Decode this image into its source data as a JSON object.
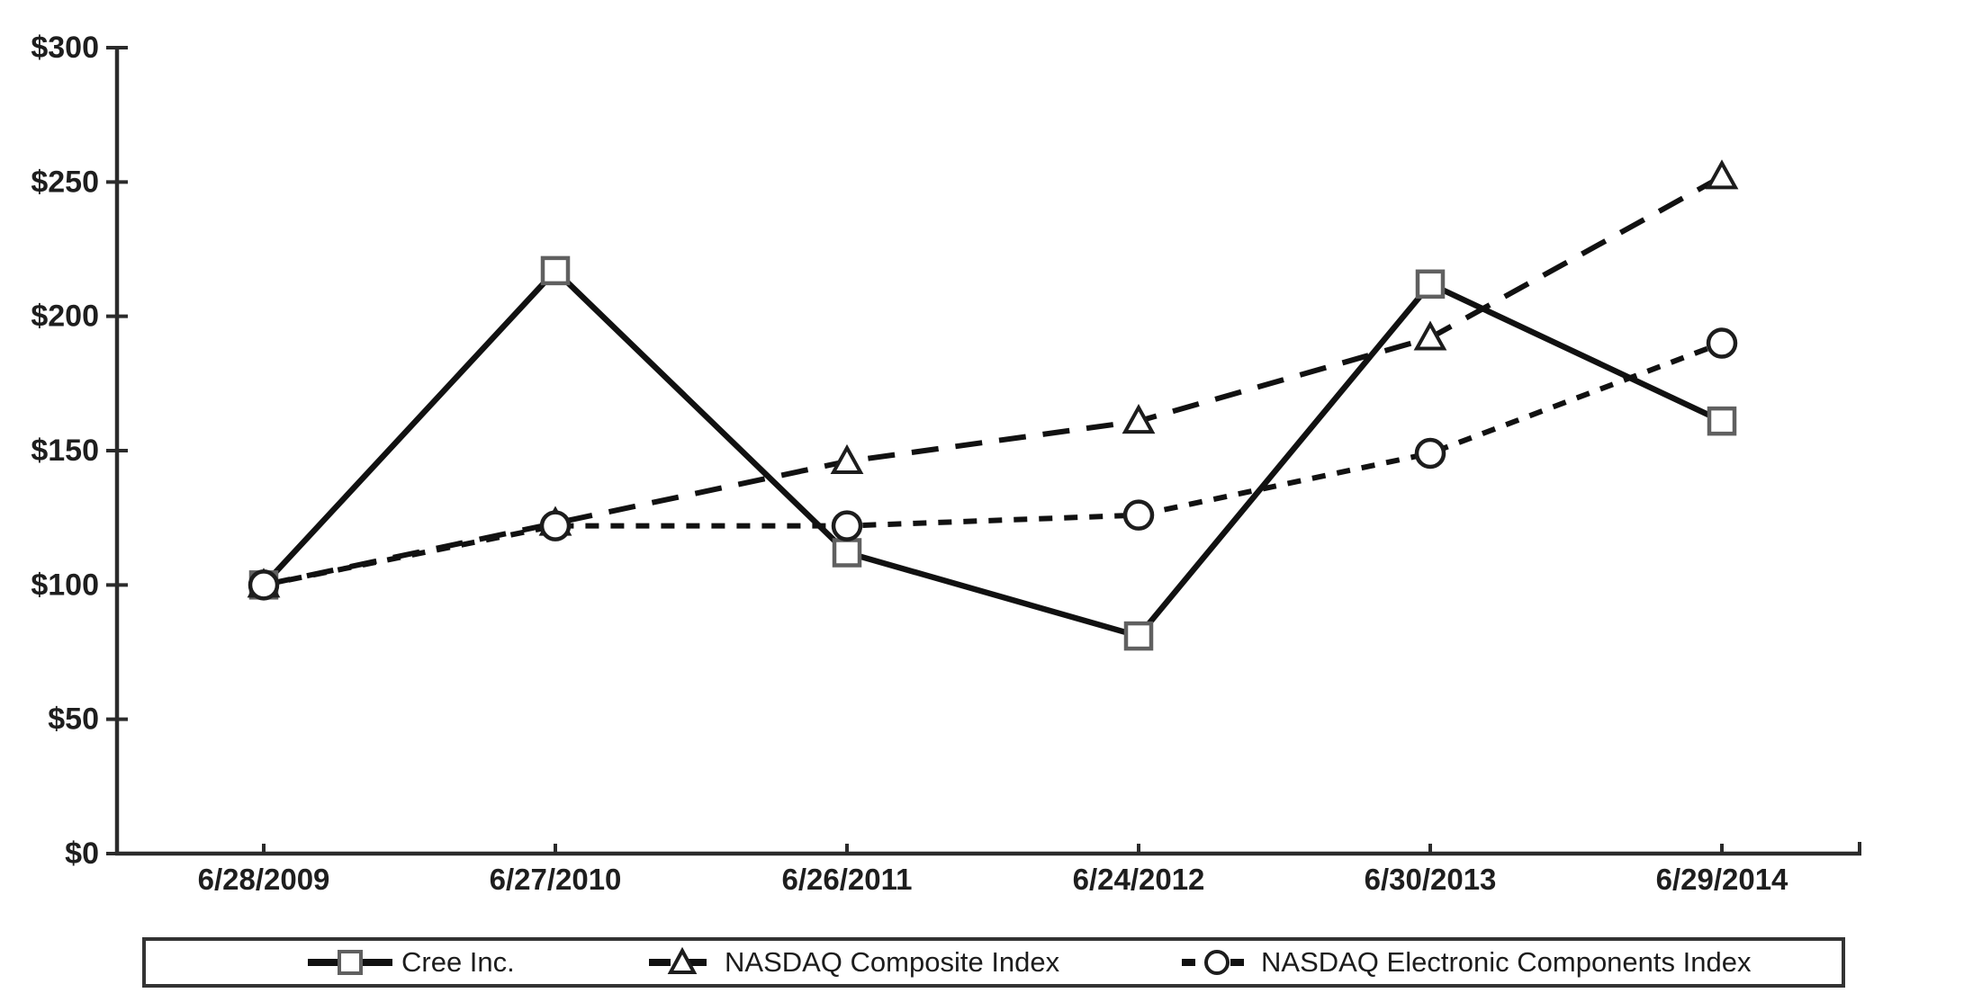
{
  "chart_data": {
    "type": "line",
    "title": "",
    "xlabel": "",
    "ylabel": "",
    "categories": [
      "6/28/2009",
      "6/27/2010",
      "6/26/2011",
      "6/24/2012",
      "6/30/2013",
      "6/29/2014"
    ],
    "ylim": [
      0,
      300
    ],
    "y_ticks": [
      0,
      50,
      100,
      150,
      200,
      250,
      300
    ],
    "y_tick_labels": [
      "$0",
      "$50",
      "$100",
      "$150",
      "$200",
      "$250",
      "$300"
    ],
    "grid": false,
    "legend_position": "bottom",
    "series": [
      {
        "name": "Cree Inc.",
        "marker": "square",
        "line_style": "solid",
        "values": [
          100,
          217,
          112,
          81,
          212,
          161
        ]
      },
      {
        "name": "NASDAQ Composite Index",
        "marker": "triangle",
        "line_style": "long-dash",
        "values": [
          100,
          123,
          146,
          161,
          192,
          252
        ]
      },
      {
        "name": "NASDAQ Electronic Components Index",
        "marker": "circle",
        "line_style": "short-dash",
        "values": [
          100,
          122,
          122,
          126,
          149,
          190
        ]
      }
    ],
    "colors": {
      "line": "#111111",
      "axis": "#2b2b2b",
      "text": "#1e1e1e",
      "marker_square_stroke": "#606060",
      "marker_stroke": "#1d1d1d",
      "marker_fill": "#ffffff",
      "legend_border": "#333333",
      "background": "#ffffff"
    }
  }
}
